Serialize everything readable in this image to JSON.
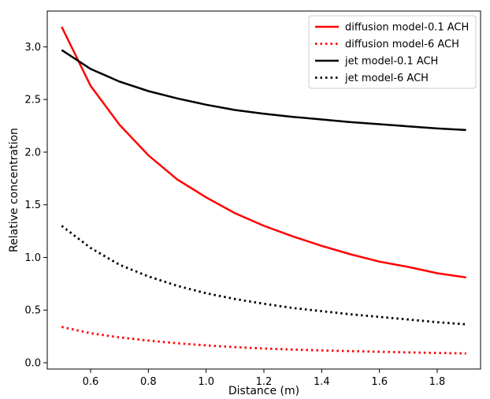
{
  "chart_data": {
    "type": "line",
    "title": "",
    "xlabel": "Distance (m)",
    "ylabel": "Relative concentration",
    "xlim": [
      0.45,
      1.95
    ],
    "ylim": [
      -0.06,
      3.34
    ],
    "xticks": [
      0.6,
      0.8,
      1.0,
      1.2,
      1.4,
      1.6,
      1.8
    ],
    "xtick_labels": [
      "0.6",
      "0.8",
      "1.0",
      "1.2",
      "1.4",
      "1.6",
      "1.8"
    ],
    "yticks": [
      0.0,
      0.5,
      1.0,
      1.5,
      2.0,
      2.5,
      3.0
    ],
    "ytick_labels": [
      "0.0",
      "0.5",
      "1.0",
      "1.5",
      "2.0",
      "2.5",
      "3.0"
    ],
    "grid": false,
    "legend_position": "top-right",
    "x": [
      0.5,
      0.6,
      0.7,
      0.8,
      0.9,
      1.0,
      1.1,
      1.2,
      1.3,
      1.4,
      1.5,
      1.6,
      1.7,
      1.8,
      1.9
    ],
    "series": [
      {
        "name": "diffusion model-0.1 ACH",
        "color": "#ff0000",
        "style": "solid",
        "values": [
          3.19,
          2.63,
          2.26,
          1.97,
          1.74,
          1.57,
          1.42,
          1.3,
          1.2,
          1.11,
          1.03,
          0.96,
          0.91,
          0.85,
          0.81
        ]
      },
      {
        "name": "diffusion model-6 ACH",
        "color": "#ff0000",
        "style": "dotted",
        "values": [
          0.34,
          0.28,
          0.24,
          0.21,
          0.185,
          0.165,
          0.148,
          0.135,
          0.125,
          0.117,
          0.11,
          0.104,
          0.098,
          0.093,
          0.088
        ]
      },
      {
        "name": "jet model-0.1 ACH",
        "color": "#000000",
        "style": "solid",
        "values": [
          2.97,
          2.79,
          2.67,
          2.58,
          2.51,
          2.45,
          2.4,
          2.365,
          2.335,
          2.31,
          2.285,
          2.265,
          2.245,
          2.225,
          2.21
        ]
      },
      {
        "name": "jet model-6 ACH",
        "color": "#000000",
        "style": "dotted",
        "values": [
          1.3,
          1.09,
          0.93,
          0.82,
          0.73,
          0.66,
          0.605,
          0.56,
          0.52,
          0.49,
          0.46,
          0.435,
          0.41,
          0.385,
          0.365
        ]
      }
    ]
  }
}
